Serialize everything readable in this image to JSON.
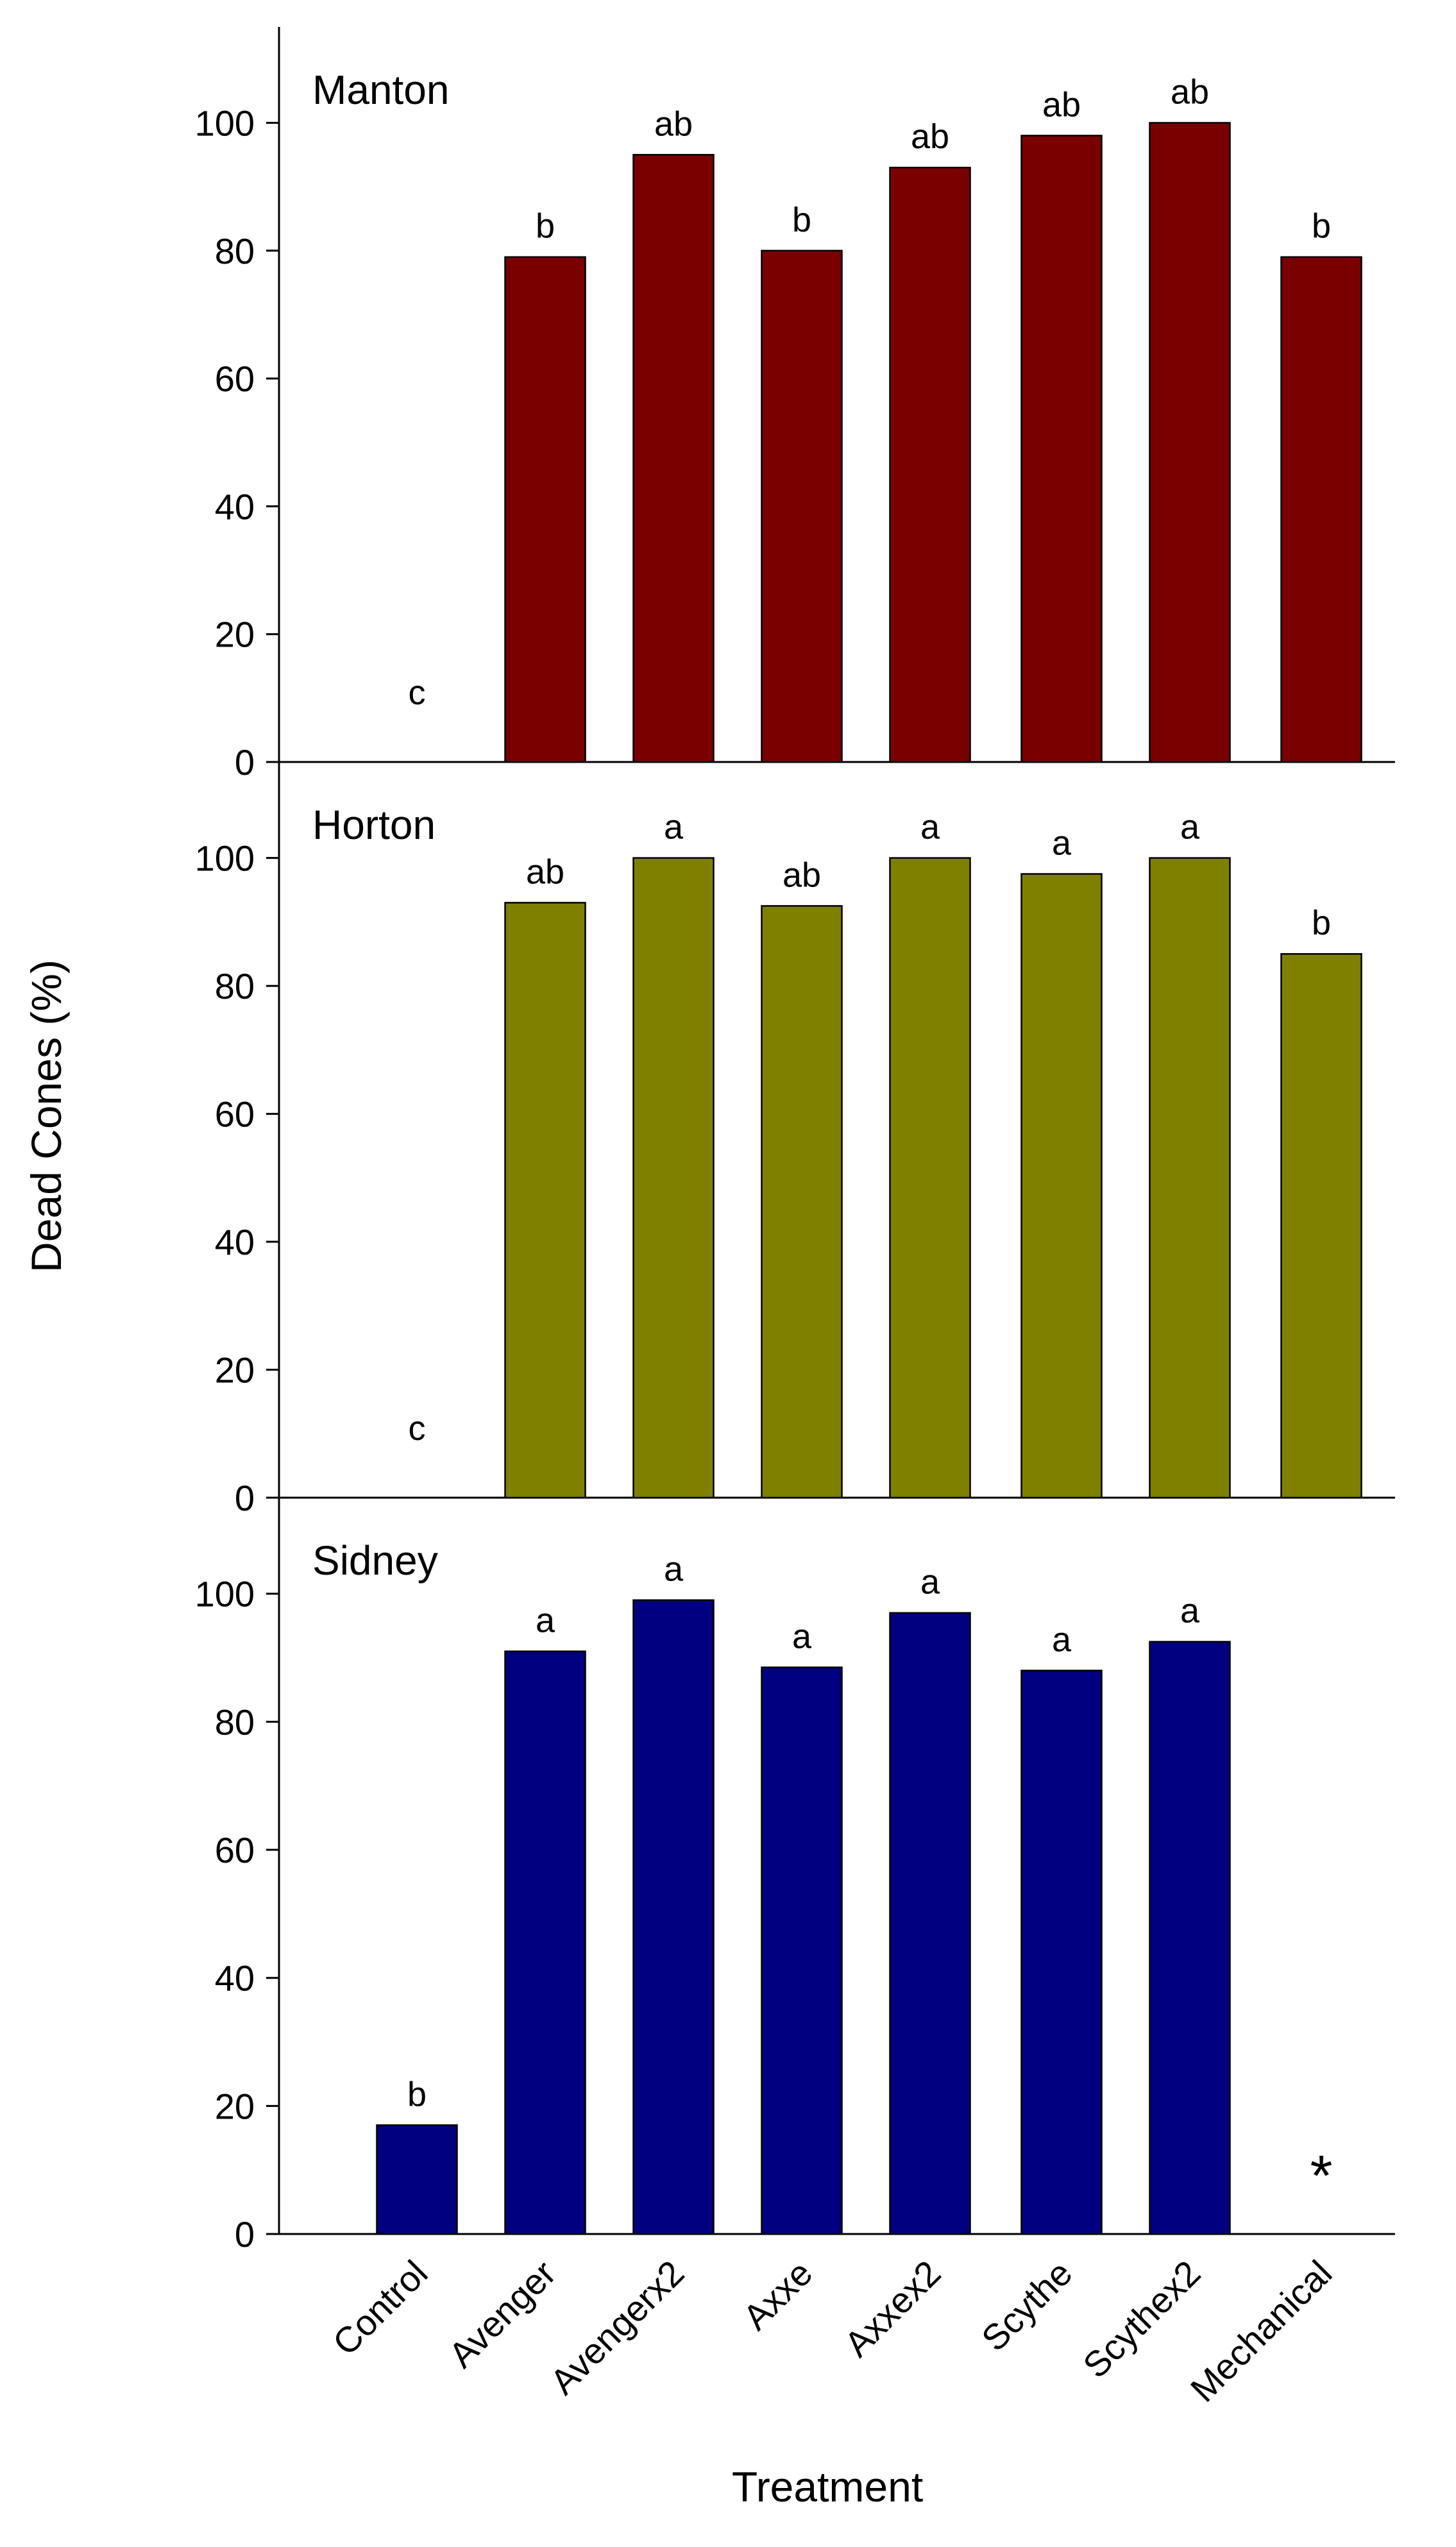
{
  "chart_data": {
    "type": "bar",
    "ylabel": "Dead Cones (%)",
    "xlabel": "Treatment",
    "categories": [
      "Control",
      "Avenger",
      "Avengerx2",
      "Axxe",
      "Axxex2",
      "Scythe",
      "Scythex2",
      "Mechanical"
    ],
    "ylim": [
      0,
      115
    ],
    "yticks": [
      0,
      20,
      40,
      60,
      80,
      100
    ],
    "panels": [
      {
        "title": "Manton",
        "color": "#7a0000",
        "values": [
          0,
          79,
          95,
          80,
          93,
          98,
          100,
          79
        ],
        "labels": [
          "c",
          "b",
          "ab",
          "b",
          "ab",
          "ab",
          "ab",
          "b"
        ]
      },
      {
        "title": "Horton",
        "color": "#808000",
        "values": [
          0,
          93,
          100,
          92.5,
          100,
          97.5,
          100,
          85
        ],
        "labels": [
          "c",
          "ab",
          "a",
          "ab",
          "a",
          "a",
          "a",
          "b"
        ]
      },
      {
        "title": "Sidney",
        "color": "#000080",
        "values": [
          17,
          91,
          99,
          88.5,
          97,
          88,
          92.5,
          null
        ],
        "labels": [
          "b",
          "a",
          "a",
          "a",
          "a",
          "a",
          "a",
          "*"
        ]
      }
    ]
  }
}
